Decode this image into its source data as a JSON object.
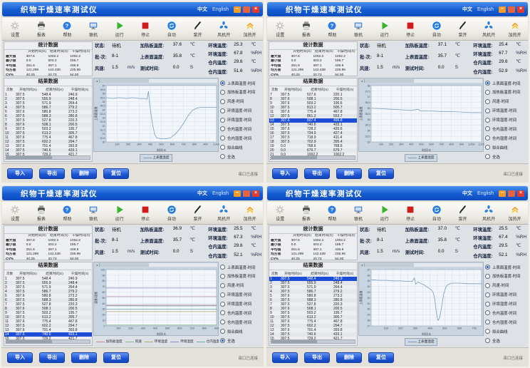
{
  "app": {
    "title": "织物干燥速率测试仪",
    "lang_zh": "中文",
    "lang_en": "English",
    "window_buttons": {
      "minimize": "–",
      "maximize": "□",
      "close": "×"
    },
    "toolbar": [
      {
        "label": "设置",
        "icon": "gear"
      },
      {
        "label": "报表",
        "icon": "printer"
      },
      {
        "label": "帮助",
        "icon": "help"
      },
      {
        "label": "联机",
        "icon": "link"
      },
      {
        "label": "运行",
        "icon": "run"
      },
      {
        "label": "停止",
        "icon": "stop"
      },
      {
        "label": "自动",
        "icon": "auto"
      },
      {
        "label": "泵开",
        "icon": "pump"
      },
      {
        "label": "风机开",
        "icon": "fan"
      },
      {
        "label": "加热开",
        "icon": "heat"
      }
    ],
    "stats": {
      "title": "统计数据",
      "col_headers": [
        "开始时间(S)",
        "结束时间(S)",
        "干燥时间(S)"
      ],
      "rows": [
        {
          "label": "最大值",
          "v": [
            "307.6",
            "1002.2",
            "1002.2"
          ]
        },
        {
          "label": "最小值",
          "v": [
            "0.0",
            "503.2",
            "195.7"
          ]
        },
        {
          "label": "平均值",
          "v": [
            "251.6",
            "697.1",
            "436.9"
          ]
        },
        {
          "label": "均方差",
          "v": [
            "121.299",
            "142.438",
            "235.96"
          ]
        },
        {
          "label": "CV%",
          "v": [
            "40.25",
            "20.73",
            "54.00"
          ]
        }
      ]
    },
    "results": {
      "title": "结果数据",
      "col_headers": [
        "次数",
        "开始时间(S)",
        "结束时间(S)",
        "干燥时间(S)"
      ]
    },
    "labels": {
      "state": "状态:",
      "batch": "批-次:",
      "wind": "风速:",
      "heater": "加热板温度:",
      "surface": "上表面温度:",
      "test_time": "测试时间:",
      "amb_temp": "环境温度:",
      "amb_hum": "环境湿度:",
      "box_temp": "仓内温度:",
      "box_hum": "仓内湿度:",
      "unit_c": "℃",
      "unit_s": "S",
      "unit_rh": "%RH",
      "unit_ms": "m/s"
    },
    "legend_items": [
      "上表面温度-时间",
      "加热板温度-时间",
      "风速-时间",
      "环境温度-时间",
      "环境湿度-时间",
      "仓内温度-时间",
      "仓内湿度-时间",
      "拟合曲线",
      "全选"
    ],
    "buttons": [
      "导入",
      "导出",
      "删除",
      "复位"
    ],
    "footer_status": "串口已连接",
    "colors": {
      "titlebar": "#155cd2",
      "button": "#1c54d4",
      "row_highlight": "#1e4ed8",
      "chart_line": "#7a9cc0"
    }
  },
  "windows": [
    {
      "status": {
        "state": "待机",
        "batch": "8-1",
        "wind": "1.5",
        "heater": "37.6",
        "surface": "35.8",
        "test_time": "0.0",
        "amb_temp": "25.3",
        "amb_hum": "67.8",
        "box_temp": "29.6",
        "box_hum": "51.6"
      },
      "selected_legend": 0,
      "highlight": -1,
      "results_rows": [
        [
          "1",
          "307.5",
          "548.4",
          "240.9"
        ],
        [
          "2",
          "307.5",
          "555.9",
          "248.4"
        ],
        [
          "3",
          "307.5",
          "571.9",
          "264.4"
        ],
        [
          "4",
          "307.5",
          "586.7",
          "279.2"
        ],
        [
          "5",
          "307.6",
          "580.8",
          "273.2"
        ],
        [
          "6",
          "307.5",
          "588.3",
          "280.8"
        ],
        [
          "7",
          "307.5",
          "527.8",
          "220.3"
        ],
        [
          "8",
          "307.6",
          "508.1",
          "200.5"
        ],
        [
          "9",
          "307.5",
          "503.2",
          "195.7"
        ],
        [
          "10",
          "307.5",
          "613.2",
          "305.7"
        ],
        [
          "11",
          "307.6",
          "775.4",
          "467.8"
        ],
        [
          "12",
          "307.5",
          "602.2",
          "294.7"
        ],
        [
          "13",
          "307.6",
          "701.4",
          "393.8"
        ],
        [
          "14",
          "307.5",
          "740.6",
          "433.1"
        ],
        [
          "15",
          "307.5",
          "729.2",
          "421.7"
        ],
        [
          "16",
          "307.5",
          "736.8",
          "429.3"
        ]
      ],
      "chart_data": {
        "type": "line",
        "xlabel": "时间 S",
        "ylabel": "上表面温度",
        "xlim": [
          0,
          1000
        ],
        "xstep": 100,
        "ylim": [
          30,
          37
        ],
        "ystep": 0.5,
        "grid": true,
        "series": [
          {
            "name": "上表面温度",
            "color": "#7a9cc0",
            "points": [
              [
                0,
                35.5
              ],
              [
                60,
                35.4
              ],
              [
                120,
                35.5
              ],
              [
                180,
                35.4
              ],
              [
                240,
                35.5
              ],
              [
                300,
                35.4
              ],
              [
                340,
                35.4
              ],
              [
                370,
                35.3
              ],
              [
                383,
                36.3
              ],
              [
                392,
                34.9
              ],
              [
                405,
                33.6
              ],
              [
                420,
                32.2
              ],
              [
                440,
                30.9
              ],
              [
                460,
                30.5
              ],
              [
                500,
                30.4
              ],
              [
                540,
                30.4
              ],
              [
                580,
                30.5
              ],
              [
                620,
                30.9
              ],
              [
                660,
                31.5
              ],
              [
                700,
                32.3
              ],
              [
                740,
                33.2
              ],
              [
                780,
                33.9
              ],
              [
                820,
                34.2
              ],
              [
                860,
                34.3
              ],
              [
                900,
                34.3
              ],
              [
                950,
                34.3
              ],
              [
                1000,
                34.3
              ]
            ]
          }
        ]
      }
    },
    {
      "status": {
        "state": "待机",
        "batch": "8-1",
        "wind": "1.5",
        "heater": "37.1",
        "surface": "35.7",
        "test_time": "0.0",
        "amb_temp": "25.4",
        "amb_hum": "67.7",
        "box_temp": "29.6",
        "box_hum": "52.9"
      },
      "selected_legend": 0,
      "highlight": 6,
      "results_rows": [
        [
          "7",
          "307.5",
          "527.6",
          "220.1"
        ],
        [
          "8",
          "307.6",
          "508.1",
          "200.5"
        ],
        [
          "9",
          "307.6",
          "503.2",
          "195.6"
        ],
        [
          "10",
          "307.5",
          "813.2",
          "505.7"
        ],
        [
          "11",
          "307.6",
          "775.4",
          "467.8"
        ],
        [
          "12",
          "307.5",
          "861.2",
          "553.7"
        ],
        [
          "13",
          "307.6",
          "807.4",
          "499.8"
        ],
        [
          "14",
          "307.5",
          "740.6",
          "433.1"
        ],
        [
          "15",
          "307.6",
          "728.2",
          "420.6"
        ],
        [
          "16",
          "307.5",
          "734.9",
          "427.4"
        ],
        [
          "17",
          "307.5",
          "718.9",
          "411.4"
        ],
        [
          "18",
          "307.5",
          "702.9",
          "395.4"
        ],
        [
          "19",
          "0.0",
          "768.6",
          "768.6"
        ],
        [
          "20",
          "0.0",
          "679.7",
          "679.7"
        ],
        [
          "21",
          "0.0",
          "1002.2",
          "1002.2"
        ],
        [
          "22",
          "0.0",
          "965.3",
          "965.3"
        ]
      ],
      "chart_data": {
        "type": "line",
        "xlabel": "时间 S",
        "ylabel": "上表面温度",
        "xlim": [
          0,
          1100
        ],
        "xstep": 100,
        "ylim": [
          33,
          38
        ],
        "ystep": 0.5,
        "grid": true,
        "series": [
          {
            "name": "上表面温度",
            "color": "#7a9cc0",
            "points": [
              [
                0,
                36.0
              ],
              [
                100,
                35.95
              ],
              [
                200,
                35.9
              ],
              [
                300,
                35.85
              ],
              [
                400,
                35.8
              ],
              [
                470,
                35.9
              ],
              [
                490,
                35.75
              ],
              [
                600,
                35.75
              ],
              [
                700,
                35.7
              ],
              [
                800,
                35.7
              ],
              [
                900,
                35.65
              ],
              [
                1000,
                35.6
              ],
              [
                1100,
                35.6
              ]
            ]
          }
        ]
      }
    },
    {
      "status": {
        "state": "待机",
        "batch": "8-1",
        "wind": "1.5",
        "heater": "36.9",
        "surface": "35.7",
        "test_time": "0.0",
        "amb_temp": "25.5",
        "amb_hum": "67.3",
        "box_temp": "29.6",
        "box_hum": "52.1"
      },
      "selected_legend": 8,
      "highlight": 13,
      "results_rows": [
        [
          "1",
          "307.5",
          "548.4",
          "240.9"
        ],
        [
          "2",
          "307.5",
          "555.9",
          "248.4"
        ],
        [
          "3",
          "307.5",
          "571.9",
          "264.4"
        ],
        [
          "4",
          "307.5",
          "586.7",
          "279.2"
        ],
        [
          "5",
          "307.6",
          "580.8",
          "273.2"
        ],
        [
          "6",
          "307.5",
          "588.3",
          "280.8"
        ],
        [
          "7",
          "307.5",
          "527.8",
          "220.3"
        ],
        [
          "8",
          "307.6",
          "508.1",
          "200.5"
        ],
        [
          "9",
          "307.5",
          "503.2",
          "195.7"
        ],
        [
          "10",
          "307.5",
          "613.2",
          "305.7"
        ],
        [
          "11",
          "307.6",
          "775.4",
          "467.8"
        ],
        [
          "12",
          "307.5",
          "602.2",
          "294.7"
        ],
        [
          "13",
          "307.6",
          "701.4",
          "393.8"
        ],
        [
          "14",
          "307.5",
          "740.6",
          "433.1"
        ],
        [
          "15",
          "307.5",
          "729.2",
          "421.7"
        ],
        [
          "16",
          "307.5",
          "736.8",
          "429.3"
        ]
      ],
      "chart_data": {
        "type": "line",
        "xlabel": "时间 S",
        "ylabel": "温度/湿度",
        "xlim": [
          0,
          900
        ],
        "xstep": 100,
        "ylim": [
          0,
          100
        ],
        "ystep": 10,
        "grid": true,
        "series": [
          {
            "name": "上表面温度",
            "color": "#7a9cc0",
            "points": [
              [
                0,
                35.7
              ],
              [
                450,
                35.5
              ],
              [
                900,
                35.6
              ]
            ]
          },
          {
            "name": "加热板温度",
            "color": "#c08a8a",
            "points": [
              [
                0,
                36.9
              ],
              [
                450,
                37.0
              ],
              [
                900,
                36.9
              ]
            ]
          },
          {
            "name": "风速",
            "color": "#86b586",
            "points": [
              [
                0,
                1.5
              ],
              [
                900,
                1.5
              ]
            ]
          },
          {
            "name": "环境温度",
            "color": "#b5a56e",
            "points": [
              [
                0,
                25.5
              ],
              [
                900,
                25.5
              ]
            ]
          },
          {
            "name": "环境湿度",
            "color": "#8a8ac0",
            "points": [
              [
                0,
                67.3
              ],
              [
                450,
                67.2
              ],
              [
                900,
                67.3
              ]
            ]
          },
          {
            "name": "仓内温度",
            "color": "#6ea8a8",
            "points": [
              [
                0,
                29.6
              ],
              [
                900,
                29.6
              ]
            ]
          },
          {
            "name": "仓内湿度",
            "color": "#bf8fbf",
            "points": [
              [
                0,
                52.1
              ],
              [
                450,
                52.0
              ],
              [
                900,
                52.1
              ]
            ]
          }
        ]
      }
    },
    {
      "status": {
        "state": "待机",
        "batch": "8-1",
        "wind": "1.5",
        "heater": "37.0",
        "surface": "35.8",
        "test_time": "0.0",
        "amb_temp": "25.5",
        "amb_hum": "67.4",
        "box_temp": "29.5",
        "box_hum": "52.1"
      },
      "selected_legend": 0,
      "highlight": 0,
      "results_rows": [
        [
          "1",
          "307.5",
          "548.4",
          "240.9"
        ],
        [
          "2",
          "307.5",
          "555.9",
          "248.4"
        ],
        [
          "3",
          "307.5",
          "571.9",
          "264.4"
        ],
        [
          "4",
          "307.5",
          "586.7",
          "279.2"
        ],
        [
          "5",
          "307.6",
          "580.8",
          "273.2"
        ],
        [
          "6",
          "307.5",
          "588.3",
          "280.8"
        ],
        [
          "7",
          "307.5",
          "527.8",
          "220.3"
        ],
        [
          "8",
          "307.6",
          "508.1",
          "200.5"
        ],
        [
          "9",
          "307.5",
          "503.2",
          "195.7"
        ],
        [
          "10",
          "307.5",
          "613.2",
          "305.7"
        ],
        [
          "11",
          "307.6",
          "775.4",
          "467.8"
        ],
        [
          "12",
          "307.5",
          "602.2",
          "294.7"
        ],
        [
          "13",
          "307.6",
          "701.4",
          "393.8"
        ],
        [
          "14",
          "307.5",
          "740.6",
          "433.1"
        ],
        [
          "15",
          "307.5",
          "729.2",
          "421.7"
        ],
        [
          "16",
          "307.5",
          "736.8",
          "429.3"
        ]
      ],
      "chart_data": {
        "type": "line",
        "xlabel": "时间 S",
        "ylabel": "上表面温度",
        "xlim": [
          0,
          750
        ],
        "xstep": 50,
        "xlabel_step": 100,
        "ylim": [
          27,
          37
        ],
        "ystep": 1,
        "grid": true,
        "series": [
          {
            "name": "上表面温度",
            "color": "#7a9cc0",
            "points": [
              [
                0,
                35.2
              ],
              [
                50,
                35.1
              ],
              [
                100,
                35.1
              ],
              [
                150,
                35.0
              ],
              [
                200,
                35.0
              ],
              [
                250,
                34.9
              ],
              [
                280,
                34.9
              ],
              [
                293,
                35.5
              ],
              [
                303,
                34.4
              ],
              [
                318,
                34.8
              ],
              [
                340,
                34.5
              ],
              [
                360,
                34.3
              ],
              [
                380,
                33.9
              ],
              [
                400,
                33.6
              ],
              [
                412,
                33.3
              ],
              [
                422,
                32.9
              ],
              [
                432,
                31.7
              ],
              [
                442,
                29.7
              ],
              [
                450,
                28.3
              ],
              [
                456,
                28.0
              ],
              [
                465,
                28.5
              ],
              [
                478,
                30.2
              ],
              [
                492,
                32.6
              ],
              [
                508,
                33.9
              ],
              [
                524,
                34.4
              ],
              [
                550,
                34.6
              ],
              [
                600,
                34.6
              ],
              [
                650,
                34.5
              ],
              [
                700,
                34.5
              ],
              [
                750,
                34.5
              ]
            ]
          }
        ]
      }
    }
  ]
}
